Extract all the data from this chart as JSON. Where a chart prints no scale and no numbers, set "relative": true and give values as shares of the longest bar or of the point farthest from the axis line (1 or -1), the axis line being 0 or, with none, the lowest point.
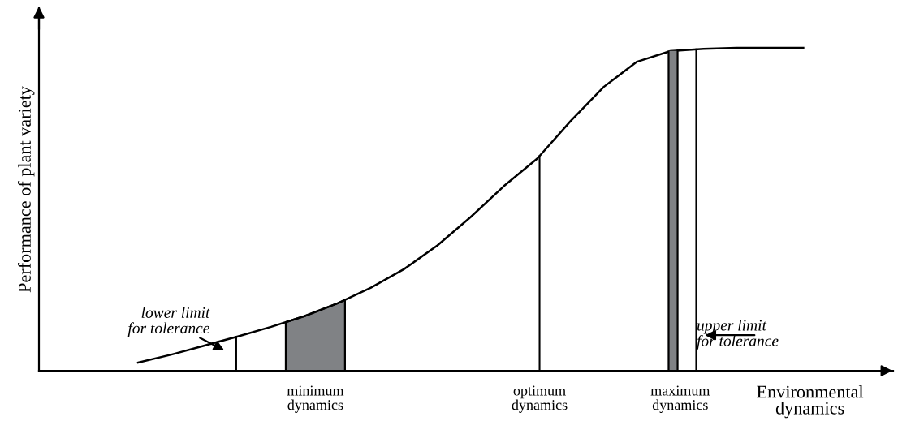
{
  "chart_data": {
    "type": "line",
    "relative": true,
    "xlabel": "Environmental dynamics",
    "ylabel": "Performance of plant variety",
    "categories": [
      null,
      null,
      null,
      null,
      null,
      null,
      null,
      null,
      null,
      null,
      null,
      null,
      null,
      null,
      null,
      null,
      null,
      null,
      null,
      null,
      null
    ],
    "series": [
      {
        "color": "#000000",
        "values": [
          0.025,
          0.05,
          0.078,
          0.106,
          0.136,
          0.169,
          0.209,
          0.257,
          0.315,
          0.388,
          0.476,
          0.572,
          0.657,
          0.773,
          0.879,
          0.957,
          0.99,
          0.997,
          1,
          1,
          1
        ]
      }
    ],
    "annotations": [
      "lower limit for tolerance",
      "minimum dynamics",
      "optimum dynamics",
      "maximum dynamics",
      "upper limit for tolerance"
    ],
    "marker": "none",
    "line_style": "solid"
  }
}
